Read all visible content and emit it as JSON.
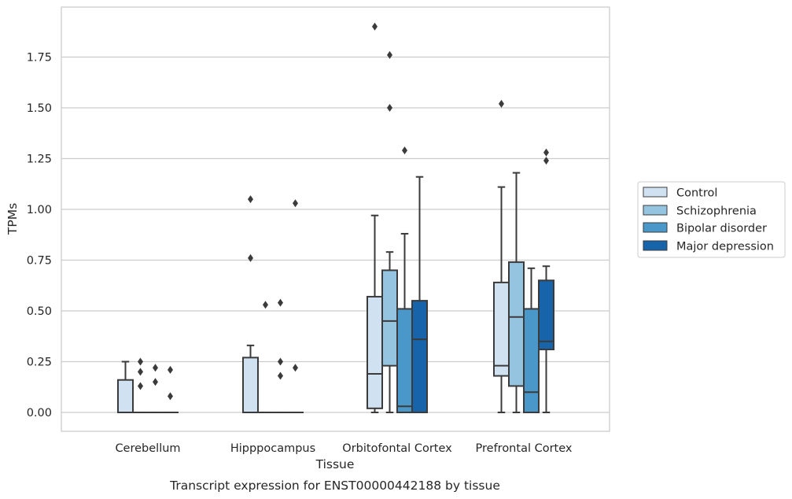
{
  "chart_data": {
    "type": "box",
    "title": "",
    "caption": "Transcript expression for ENST00000442188 by tissue",
    "xlabel": "Tissue",
    "ylabel": "TPMs",
    "ylim": [
      -0.09,
      1.99
    ],
    "yticks": [
      "0.00",
      "0.25",
      "0.50",
      "0.75",
      "1.00",
      "1.25",
      "1.50",
      "1.75"
    ],
    "grid": "horizontal",
    "legend_position": "right",
    "categories": [
      "Cerebellum",
      "Hipppocampus",
      "Orbitofontal Cortex",
      "Prefrontal Cortex"
    ],
    "series": [
      {
        "name": "Control",
        "color": "#d0e1f2"
      },
      {
        "name": "Schizophrenia",
        "color": "#94c4df"
      },
      {
        "name": "Bipolar disorder",
        "color": "#4a98c9"
      },
      {
        "name": "Major depression",
        "color": "#1764ab"
      }
    ],
    "boxes": [
      [
        {
          "q1": 0,
          "median": 0,
          "q3": 0.16,
          "wlow": 0,
          "whigh": 0.25,
          "outliers": []
        },
        {
          "q1": 0,
          "median": 0,
          "q3": 0,
          "wlow": 0,
          "whigh": 0,
          "outliers": [
            0.25,
            0.2,
            0.13
          ]
        },
        {
          "q1": 0,
          "median": 0,
          "q3": 0,
          "wlow": 0,
          "whigh": 0,
          "outliers": [
            0.22,
            0.15
          ]
        },
        {
          "q1": 0,
          "median": 0,
          "q3": 0,
          "wlow": 0,
          "whigh": 0,
          "outliers": [
            0.21,
            0.08
          ]
        }
      ],
      [
        {
          "q1": 0,
          "median": 0,
          "q3": 0.27,
          "wlow": 0,
          "whigh": 0.33,
          "outliers": [
            1.05,
            0.76
          ]
        },
        {
          "q1": 0,
          "median": 0,
          "q3": 0,
          "wlow": 0,
          "whigh": 0,
          "outliers": [
            0.53
          ]
        },
        {
          "q1": 0,
          "median": 0,
          "q3": 0,
          "wlow": 0,
          "whigh": 0,
          "outliers": [
            0.54,
            0.25,
            0.18
          ]
        },
        {
          "q1": 0,
          "median": 0,
          "q3": 0,
          "wlow": 0,
          "whigh": 0,
          "outliers": [
            1.03,
            0.22
          ]
        }
      ],
      [
        {
          "q1": 0.02,
          "median": 0.19,
          "q3": 0.57,
          "wlow": 0,
          "whigh": 0.97,
          "outliers": [
            1.9
          ]
        },
        {
          "q1": 0.23,
          "median": 0.45,
          "q3": 0.7,
          "wlow": 0,
          "whigh": 0.79,
          "outliers": [
            1.76,
            1.5
          ]
        },
        {
          "q1": 0,
          "median": 0.03,
          "q3": 0.51,
          "wlow": 0,
          "whigh": 0.88,
          "outliers": [
            1.29
          ]
        },
        {
          "q1": 0,
          "median": 0.36,
          "q3": 0.55,
          "wlow": 0,
          "whigh": 1.16,
          "outliers": []
        }
      ],
      [
        {
          "q1": 0.18,
          "median": 0.23,
          "q3": 0.64,
          "wlow": 0,
          "whigh": 1.11,
          "outliers": [
            1.52
          ]
        },
        {
          "q1": 0.13,
          "median": 0.47,
          "q3": 0.74,
          "wlow": 0,
          "whigh": 1.18,
          "outliers": []
        },
        {
          "q1": 0,
          "median": 0.1,
          "q3": 0.51,
          "wlow": 0,
          "whigh": 0.71,
          "outliers": []
        },
        {
          "q1": 0.31,
          "median": 0.35,
          "q3": 0.65,
          "wlow": 0,
          "whigh": 0.72,
          "outliers": [
            1.28,
            1.24
          ]
        }
      ]
    ]
  }
}
